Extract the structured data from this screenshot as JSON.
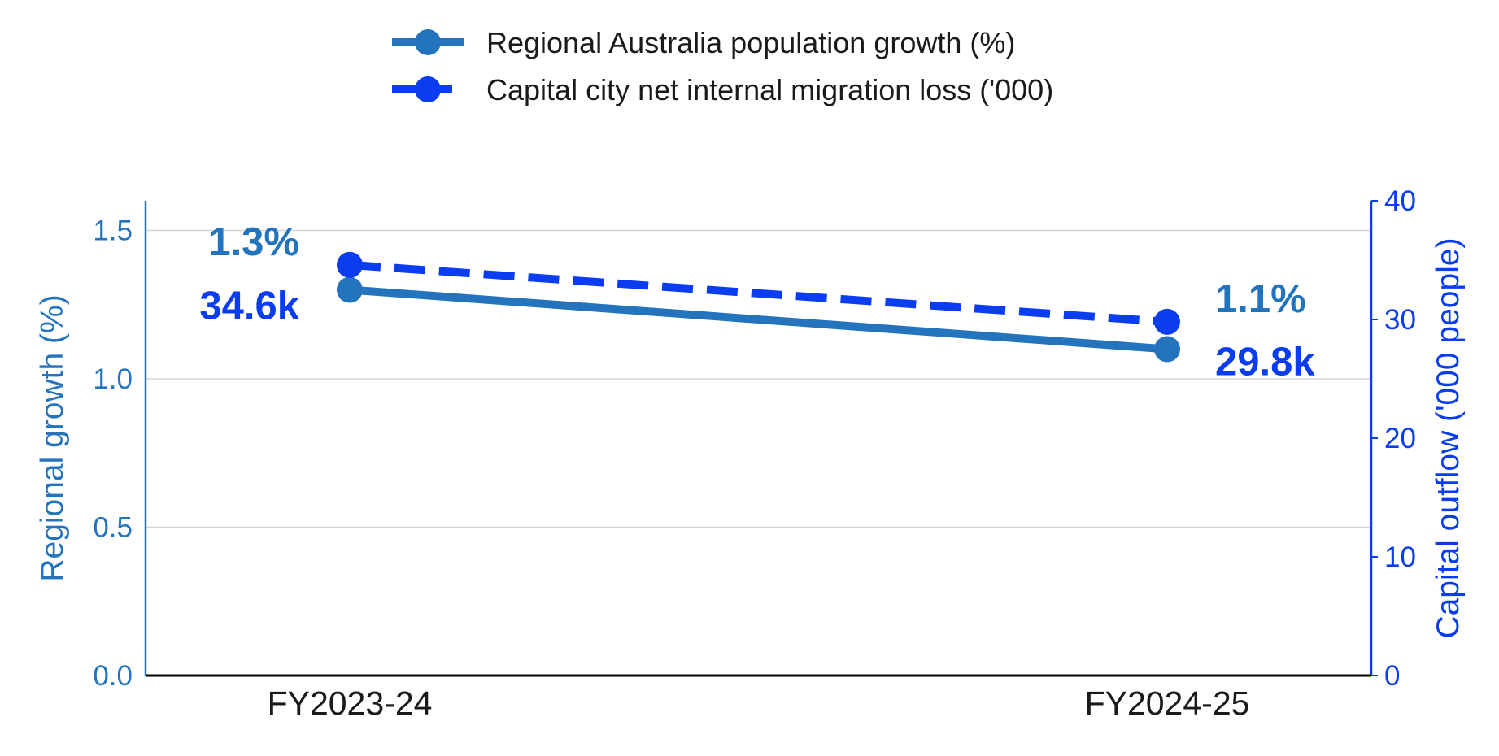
{
  "chart_data": {
    "type": "line",
    "categories": [
      "FY2023-24",
      "FY2024-25"
    ],
    "series": [
      {
        "name": "Regional Australia population growth (%)",
        "values": [
          1.3,
          1.1
        ],
        "labels": [
          "1.3%",
          "1.1%"
        ],
        "axis": "left",
        "color": "#2474bd",
        "line_style": "solid"
      },
      {
        "name": "Capital city net internal migration loss ('000)",
        "values": [
          34.6,
          29.8
        ],
        "labels": [
          "34.6k",
          "29.8k"
        ],
        "axis": "right",
        "color": "#0a3cf0",
        "line_style": "dashed"
      }
    ],
    "ylabel_left": "Regional growth (%)",
    "ylabel_right": "Capital outflow ('000 people)",
    "ylim_left": [
      0,
      1.6
    ],
    "ylim_right": [
      0,
      40
    ],
    "yticks_left": [
      "0.0",
      "0.5",
      "1.0",
      "1.5"
    ],
    "yticks_right": [
      "0",
      "10",
      "20",
      "30",
      "40"
    ],
    "grid": true,
    "legend_position": "top-center"
  }
}
